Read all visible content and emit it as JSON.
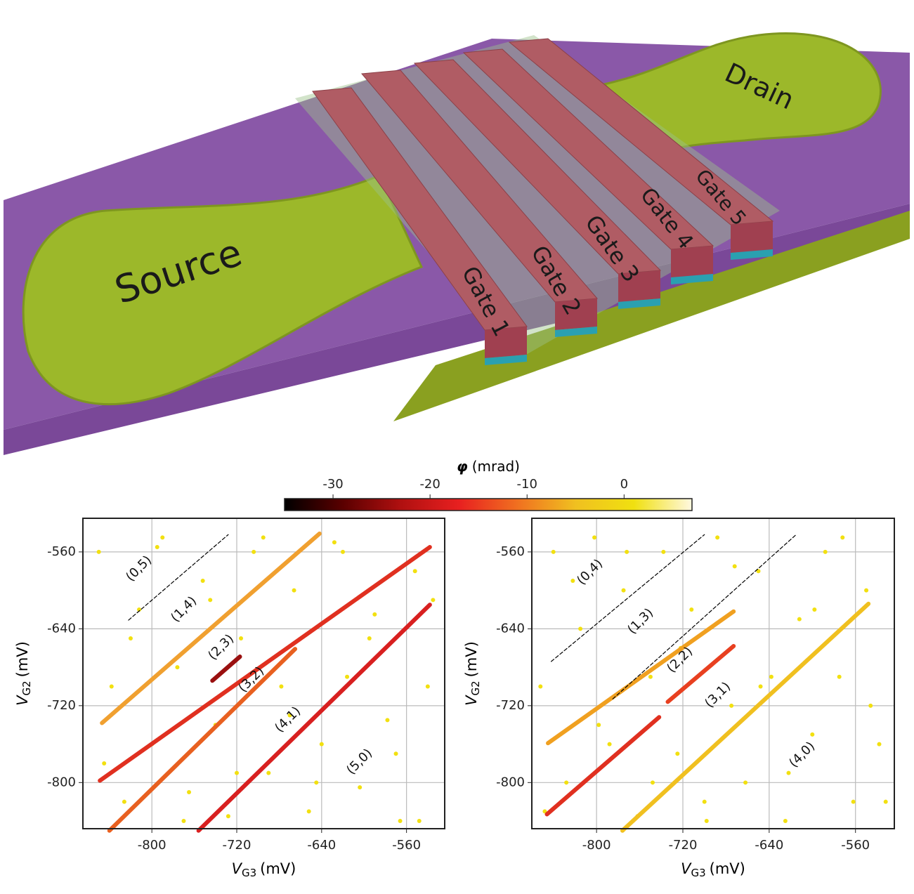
{
  "device": {
    "labels": [
      "Source",
      "Drain",
      "Gate 1",
      "Gate 2",
      "Gate 3",
      "Gate 4",
      "Gate 5"
    ]
  },
  "colorbar": {
    "symbol": "φ",
    "unit": "(mrad)",
    "clim": [
      -35,
      7
    ],
    "ticks": [
      -30,
      -20,
      -10,
      0
    ],
    "colormap": [
      "#000000",
      "#5a0000",
      "#b01010",
      "#e82020",
      "#f07020",
      "#f0c020",
      "#f0e010",
      "#fff8e0"
    ]
  },
  "chart_data": [
    {
      "type": "scatter",
      "xlabel": {
        "symbol": "V",
        "sub": "G3",
        "unit": "(mV)"
      },
      "ylabel": {
        "symbol": "V",
        "sub": "G2",
        "unit": "(mV)"
      },
      "xlim": [
        -865,
        -524
      ],
      "ylim": [
        -848,
        -525
      ],
      "xticks": [
        -800,
        -720,
        -640,
        -560
      ],
      "yticks": [
        -560,
        -640,
        -720,
        -800
      ],
      "grid": true,
      "points": {
        "color": "#f2e010",
        "x": [
          -850,
          -838,
          -826,
          -812,
          -800,
          -790,
          -776,
          -765,
          -752,
          -740,
          -728,
          -716,
          -704,
          -690,
          -678,
          -666,
          -652,
          -640,
          -628,
          -616,
          -604,
          -590,
          -578,
          -566,
          -552,
          -540,
          -845,
          -820,
          -795,
          -770,
          -745,
          -720,
          -695,
          -670,
          -645,
          -620,
          -595,
          -570,
          -548,
          -535
        ],
        "y": [
          -560,
          -700,
          -820,
          -620,
          -760,
          -545,
          -680,
          -810,
          -590,
          -740,
          -835,
          -650,
          -560,
          -790,
          -700,
          -600,
          -830,
          -760,
          -550,
          -690,
          -805,
          -625,
          -735,
          -840,
          -580,
          -700,
          -780,
          -650,
          -555,
          -840,
          -610,
          -790,
          -545,
          -730,
          -800,
          -560,
          -650,
          -770,
          -840,
          -610
        ]
      },
      "lines": [
        {
          "color": "#f0a030",
          "x": [
            -847,
            -642
          ],
          "y": [
            -738,
            -541
          ]
        },
        {
          "color": "#e03020",
          "x": [
            -849,
            -538
          ],
          "y": [
            -798,
            -555
          ]
        },
        {
          "color": "#e86020",
          "x": [
            -840,
            -665
          ],
          "y": [
            -850,
            -661
          ]
        },
        {
          "color": "#d82020",
          "x": [
            -756,
            -538
          ],
          "y": [
            -850,
            -615
          ]
        },
        {
          "color": "#9a1010",
          "x": [
            -743,
            -717
          ],
          "y": [
            -694,
            -669
          ]
        },
        {
          "color": "#000000",
          "dashed": true,
          "x": [
            -822,
            -728
          ],
          "y": [
            -631,
            -542
          ]
        }
      ],
      "annotations": [
        "(0,5)",
        "(1,4)",
        "(2,3)",
        "(3,2)",
        "(4,1)",
        "(5,0)"
      ]
    },
    {
      "type": "scatter",
      "xlabel": {
        "symbol": "V",
        "sub": "G3",
        "unit": "(mV)"
      },
      "ylabel": {
        "symbol": "V",
        "sub": "G2",
        "unit": "(mV)"
      },
      "xlim": [
        -860,
        -524
      ],
      "ylim": [
        -848,
        -525
      ],
      "xticks": [
        -800,
        -720,
        -640,
        -560
      ],
      "yticks": [
        -560,
        -640,
        -720,
        -800
      ],
      "grid": true,
      "points": {
        "color": "#f2e010",
        "x": [
          -852,
          -840,
          -828,
          -815,
          -802,
          -788,
          -775,
          -762,
          -750,
          -738,
          -725,
          -712,
          -700,
          -688,
          -675,
          -662,
          -650,
          -638,
          -625,
          -612,
          -600,
          -588,
          -575,
          -562,
          -550,
          -538,
          -848,
          -822,
          -798,
          -772,
          -748,
          -722,
          -698,
          -672,
          -648,
          -622,
          -598,
          -572,
          -546,
          -532
        ],
        "y": [
          -700,
          -560,
          -800,
          -640,
          -545,
          -760,
          -600,
          -835,
          -690,
          -560,
          -770,
          -620,
          -820,
          -545,
          -720,
          -800,
          -580,
          -690,
          -840,
          -630,
          -750,
          -560,
          -690,
          -820,
          -600,
          -760,
          -830,
          -590,
          -740,
          -560,
          -800,
          -660,
          -840,
          -575,
          -700,
          -790,
          -620,
          -545,
          -720,
          -820
        ]
      },
      "lines": [
        {
          "color": "#f0a020",
          "x": [
            -845,
            -673
          ],
          "y": [
            -759,
            -622
          ]
        },
        {
          "color": "#e03020",
          "x": [
            -846,
            -742
          ],
          "y": [
            -833,
            -732
          ]
        },
        {
          "color": "#e84020",
          "x": [
            -734,
            -673
          ],
          "y": [
            -716,
            -658
          ]
        },
        {
          "color": "#f0c020",
          "x": [
            -776,
            -548
          ],
          "y": [
            -850,
            -614
          ]
        },
        {
          "color": "#000000",
          "dashed": true,
          "x": [
            -842,
            -700
          ],
          "y": [
            -674,
            -542
          ]
        },
        {
          "color": "#000000",
          "dashed": true,
          "x": [
            -785,
            -615
          ],
          "y": [
            -713,
            -542
          ]
        }
      ],
      "annotations": [
        "(0,4)",
        "(1,3)",
        "(2,2)",
        "(3,1)",
        "(4,0)"
      ]
    }
  ]
}
